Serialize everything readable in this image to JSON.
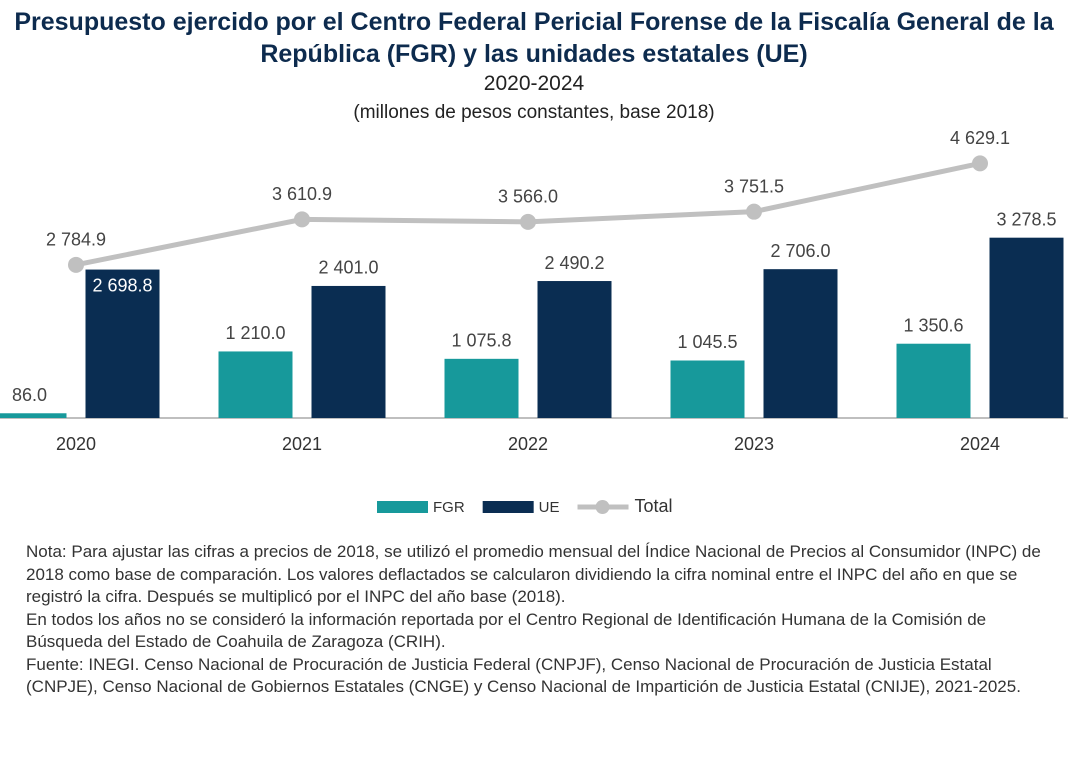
{
  "chart_data": {
    "type": "bar-line",
    "title": "Presupuesto ejercido por el Centro Federal Pericial Forense de la Fiscalía General de la República (FGR) y las unidades estatales (UE)",
    "subtitle": "2020-2024",
    "units_note": "(millones de pesos constantes, base 2018)",
    "categories": [
      "2020",
      "2021",
      "2022",
      "2023",
      "2024"
    ],
    "ylim": [
      0,
      5000
    ],
    "legend": "bottom",
    "series": [
      {
        "name": "FGR",
        "type": "bar",
        "color": "#17999b",
        "values": [
          86.0,
          1210.0,
          1075.8,
          1045.5,
          1350.6
        ],
        "value_labels": [
          "86.0",
          "1 210.0",
          "1 075.8",
          "1 045.5",
          "1 350.6"
        ]
      },
      {
        "name": "UE",
        "type": "bar",
        "color": "#0a2d52",
        "values": [
          2698.8,
          2401.0,
          2490.2,
          2706.0,
          3278.5
        ],
        "value_labels": [
          "2 698.8",
          "2 401.0",
          "2 490.2",
          "2 706.0",
          "3 278.5"
        ]
      },
      {
        "name": "Total",
        "type": "line",
        "color": "#c0c0c0",
        "values": [
          2784.9,
          3610.9,
          3566.0,
          3751.5,
          4629.1
        ],
        "value_labels": [
          "2 784.9",
          "3 610.9",
          "3 566.0",
          "3 751.5",
          "4 629.1"
        ]
      }
    ],
    "notes": [
      "Nota: Para ajustar las cifras a precios de 2018, se utilizó el promedio mensual del Índice Nacional de Precios al Consumidor (INPC) de 2018 como base de comparación. Los valores deflactados se calcularon dividiendo la cifra nominal entre el INPC del año en que se registró la cifra. Después se multiplicó por el INPC del año base (2018).",
      "En todos los años no se consideró la información reportada por el Centro Regional de Identificación Humana de la Comisión de Búsqueda del Estado de Coahuila de Zaragoza (CRIH).",
      "Fuente: INEGI. Censo Nacional de Procuración de Justicia Federal (CNPJF), Censo Nacional de Procuración de Justicia Estatal (CNPJE), Censo Nacional de Gobiernos Estatales (CNGE) y Censo Nacional de Impartición de Justicia Estatal (CNIJE), 2021-2025."
    ]
  }
}
